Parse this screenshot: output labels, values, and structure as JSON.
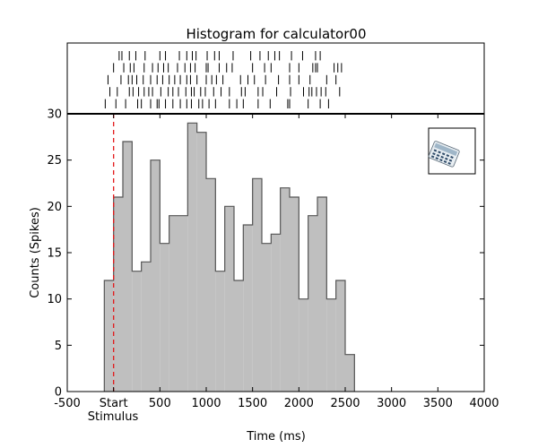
{
  "chart_data": {
    "type": "bar",
    "title": "Histogram for calculator00",
    "xlabel": "Time (ms)",
    "ylabel": "Counts (Spikes)",
    "xlim": [
      -500,
      4000
    ],
    "ylim": [
      0,
      30
    ],
    "grid": false,
    "x_ticks": [
      {
        "value": -500,
        "label": "-500"
      },
      {
        "value": 0,
        "label": "Start"
      },
      {
        "value": 500,
        "label": "500"
      },
      {
        "value": 1000,
        "label": "1000"
      },
      {
        "value": 1500,
        "label": "1500"
      },
      {
        "value": 2000,
        "label": "2000"
      },
      {
        "value": 2500,
        "label": "2500"
      },
      {
        "value": 3000,
        "label": "3000"
      },
      {
        "value": 3500,
        "label": "3500"
      },
      {
        "value": 4000,
        "label": "4000"
      }
    ],
    "stimulus_label": "Stimulus",
    "y_ticks": [
      0,
      5,
      10,
      15,
      20,
      25,
      30
    ],
    "bin_width": 100,
    "bins": [
      {
        "start": -100,
        "count": 12
      },
      {
        "start": 0,
        "count": 21
      },
      {
        "start": 100,
        "count": 27
      },
      {
        "start": 200,
        "count": 13
      },
      {
        "start": 300,
        "count": 14
      },
      {
        "start": 400,
        "count": 25
      },
      {
        "start": 500,
        "count": 16
      },
      {
        "start": 600,
        "count": 19
      },
      {
        "start": 700,
        "count": 19
      },
      {
        "start": 800,
        "count": 29
      },
      {
        "start": 900,
        "count": 28
      },
      {
        "start": 1000,
        "count": 23
      },
      {
        "start": 1100,
        "count": 13
      },
      {
        "start": 1200,
        "count": 20
      },
      {
        "start": 1300,
        "count": 12
      },
      {
        "start": 1400,
        "count": 18
      },
      {
        "start": 1500,
        "count": 23
      },
      {
        "start": 1600,
        "count": 16
      },
      {
        "start": 1700,
        "count": 17
      },
      {
        "start": 1800,
        "count": 22
      },
      {
        "start": 1900,
        "count": 21
      },
      {
        "start": 2000,
        "count": 10
      },
      {
        "start": 2100,
        "count": 19
      },
      {
        "start": 2200,
        "count": 21
      },
      {
        "start": 2300,
        "count": 10
      },
      {
        "start": 2400,
        "count": 12
      },
      {
        "start": 2500,
        "count": 4
      }
    ],
    "stimulus_onset": 0,
    "raster_trials": [
      [
        -90,
        25,
        130,
        260,
        300,
        400,
        470,
        490,
        560,
        640,
        720,
        790,
        840,
        920,
        960,
        1030,
        1100,
        1250,
        1330,
        1400,
        1560,
        1690,
        1880,
        1900,
        2100,
        2230,
        2320
      ],
      [
        -40,
        40,
        170,
        210,
        270,
        330,
        380,
        420,
        510,
        590,
        640,
        700,
        780,
        840,
        870,
        940,
        990,
        1080,
        1160,
        1250,
        1380,
        1420,
        1560,
        1610,
        1760,
        1910,
        2050,
        2110,
        2140,
        2190,
        2240,
        2290,
        2440
      ],
      [
        -60,
        80,
        160,
        200,
        250,
        320,
        400,
        470,
        530,
        600,
        660,
        720,
        790,
        830,
        900,
        1000,
        1060,
        1110,
        1180,
        1370,
        1450,
        1520,
        1640,
        1780,
        1900,
        2000,
        2120,
        2300,
        2400
      ],
      [
        0,
        110,
        180,
        220,
        330,
        420,
        480,
        540,
        590,
        690,
        770,
        830,
        880,
        1000,
        1020,
        1140,
        1220,
        1280,
        1500,
        1630,
        1700,
        1900,
        2000,
        2150,
        2180,
        2200,
        2380,
        2420,
        2460
      ],
      [
        60,
        90,
        170,
        240,
        340,
        500,
        560,
        710,
        790,
        850,
        890,
        1010,
        1090,
        1140,
        1290,
        1480,
        1580,
        1670,
        1740,
        1790,
        1920,
        2040,
        2180,
        2230
      ]
    ]
  },
  "legend_icon": "calculator-icon"
}
